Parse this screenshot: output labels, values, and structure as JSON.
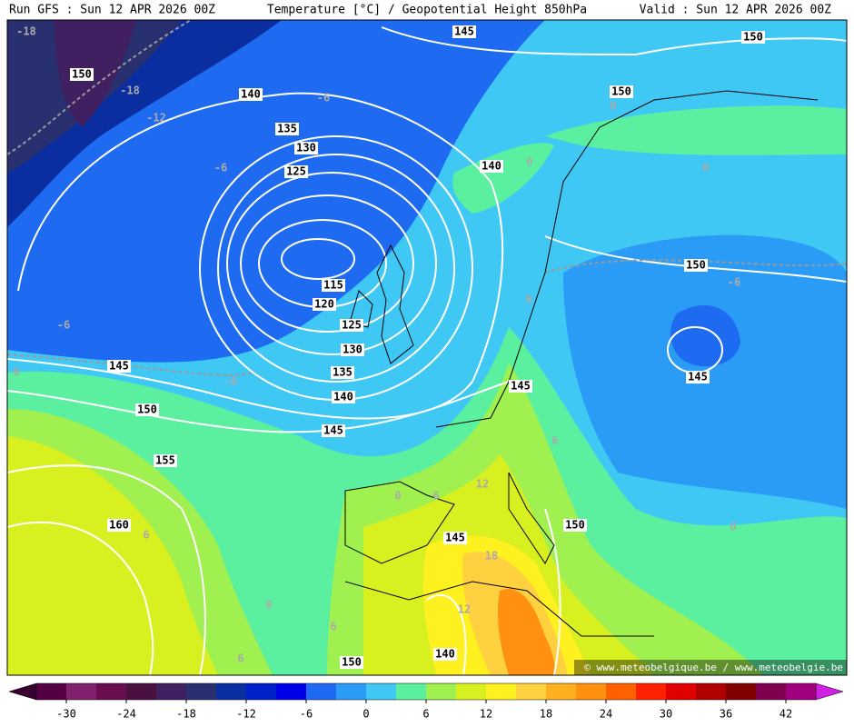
{
  "header": {
    "run": "Run GFS : Sun 12 APR 2026 00Z",
    "title": "Temperature [°C] / Geopotential Height 850hPa",
    "valid": "Valid : Sun 12 APR 2026 00Z"
  },
  "credit": "© www.meteobelgique.be / www.meteobelgie.be",
  "colorbar": {
    "lim": [
      -33,
      45
    ],
    "under_color": "#3a0030",
    "over_color": "#d020e0",
    "colors": [
      "#550044",
      "#80206e",
      "#6a0d50",
      "#4a1040",
      "#402060",
      "#283070",
      "#0a2ea0",
      "#0020c8",
      "#0000e8",
      "#1e6af0",
      "#2a9cf5",
      "#40c8f5",
      "#5af0a0",
      "#a0f050",
      "#d8f020",
      "#fff020",
      "#ffd040",
      "#ffb020",
      "#ff9010",
      "#ff6000",
      "#ff2000",
      "#e00000",
      "#b00000",
      "#800000",
      "#800050",
      "#a00080"
    ],
    "ticks": [
      -30,
      -24,
      -18,
      -12,
      -6,
      0,
      6,
      12,
      18,
      24,
      30,
      36,
      42
    ]
  },
  "height_labels": [
    145,
    150,
    150,
    140,
    150,
    135,
    130,
    140,
    125,
    115,
    120,
    125,
    130,
    135,
    140,
    150,
    145,
    145,
    150,
    145,
    145,
    155,
    160,
    145,
    150,
    140,
    150
  ],
  "temperature_labels": [
    -18,
    -18,
    -12,
    -6,
    -6,
    -6,
    -6,
    0,
    0,
    0,
    0,
    0,
    -6,
    6,
    12,
    0,
    6,
    18,
    12,
    6,
    0,
    6,
    6,
    0
  ]
}
